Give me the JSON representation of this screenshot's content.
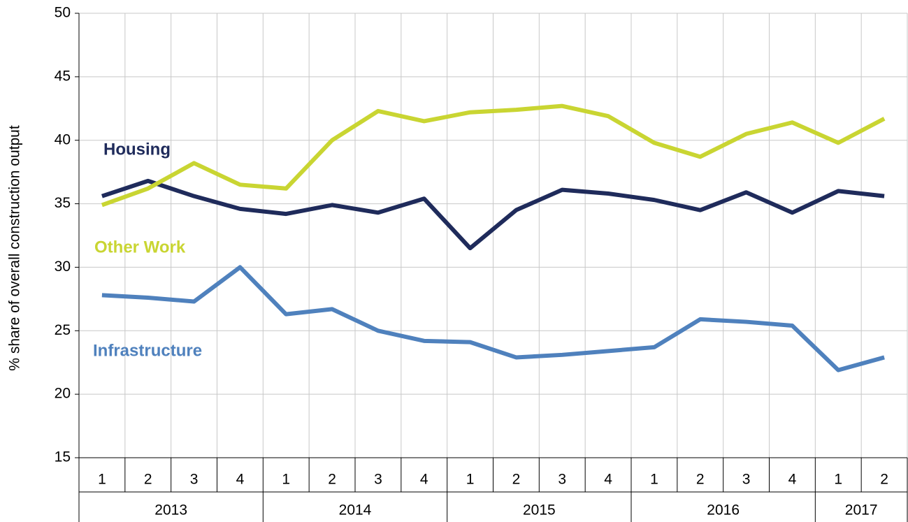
{
  "chart_data": {
    "type": "line",
    "y_label": "% share of overall construction output",
    "categories": [
      "1",
      "2",
      "3",
      "4",
      "1",
      "2",
      "3",
      "4",
      "1",
      "2",
      "3",
      "4",
      "1",
      "2",
      "3",
      "4",
      "1",
      "2"
    ],
    "groups": [
      {
        "label": "2013",
        "size": 4
      },
      {
        "label": "2014",
        "size": 4
      },
      {
        "label": "2015",
        "size": 4
      },
      {
        "label": "2016",
        "size": 4
      },
      {
        "label": "2017",
        "size": 2
      }
    ],
    "series": [
      {
        "name": "Housing",
        "color": "#1f2b5b",
        "values": [
          35.6,
          36.8,
          35.6,
          34.6,
          34.2,
          34.9,
          34.3,
          35.4,
          31.5,
          34.5,
          36.1,
          35.8,
          35.3,
          34.5,
          35.9,
          34.3,
          36.0,
          35.6
        ]
      },
      {
        "name": "Other Work",
        "color": "#c9d532",
        "values": [
          34.9,
          36.2,
          38.2,
          36.5,
          36.2,
          40.0,
          42.3,
          41.5,
          42.2,
          42.4,
          42.7,
          41.9,
          39.8,
          38.7,
          40.5,
          41.4,
          39.8,
          41.7
        ]
      },
      {
        "name": "Infrastructure",
        "color": "#4f81bd",
        "values": [
          27.8,
          27.6,
          27.3,
          30.0,
          26.3,
          26.7,
          25.0,
          24.2,
          24.1,
          22.9,
          23.1,
          23.4,
          23.7,
          25.9,
          25.7,
          25.4,
          21.9,
          22.9
        ]
      }
    ],
    "ylim": [
      15,
      50
    ],
    "yticks": [
      15,
      20,
      25,
      30,
      35,
      40,
      45,
      50
    ],
    "grid": true
  }
}
